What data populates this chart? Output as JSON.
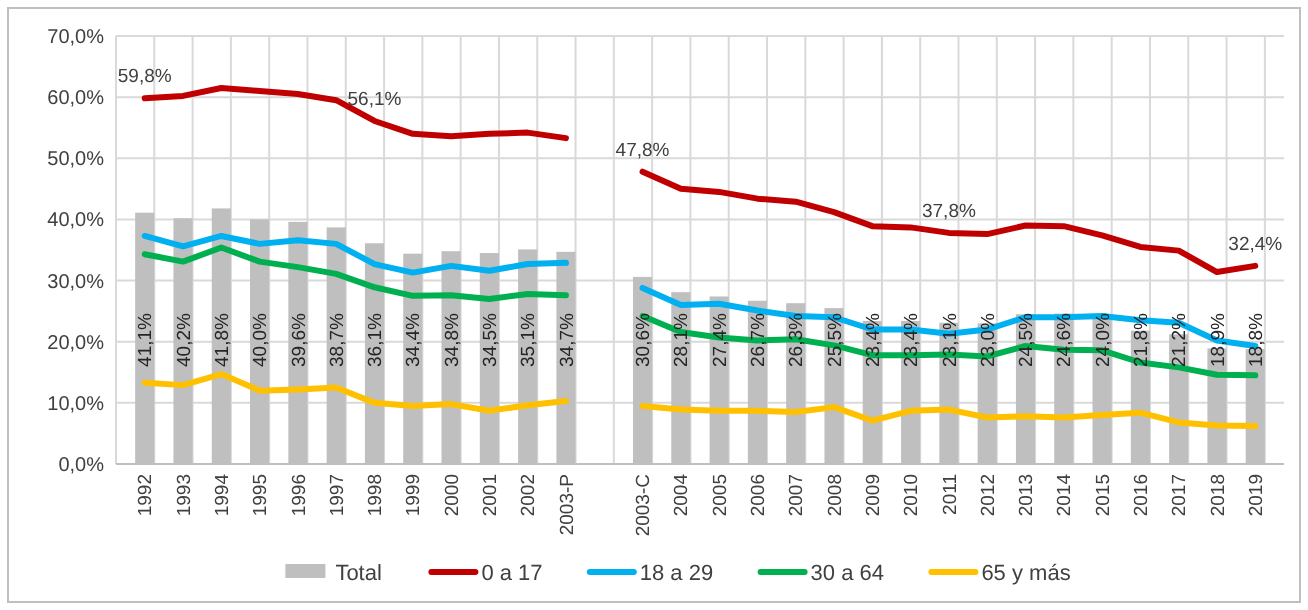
{
  "chart_data": {
    "type": "bar",
    "categories": [
      "1992",
      "1993",
      "1994",
      "1995",
      "1996",
      "1997",
      "1998",
      "1999",
      "2000",
      "2001",
      "2002",
      "2003-P",
      null,
      "2003-C",
      "2004",
      "2005",
      "2006",
      "2007",
      "2008",
      "2009",
      "2010",
      "2011",
      "2012",
      "2013",
      "2014",
      "2015",
      "2016",
      "2017",
      "2018",
      "2019"
    ],
    "series": [
      {
        "name": "Total",
        "color": "#bfbfbf",
        "values": [
          41.1,
          40.2,
          41.8,
          40.0,
          39.6,
          38.7,
          36.1,
          34.4,
          34.8,
          34.5,
          35.1,
          34.7,
          null,
          30.6,
          28.1,
          27.4,
          26.7,
          26.3,
          25.5,
          23.4,
          23.4,
          23.1,
          23.0,
          24.5,
          24.6,
          24.0,
          21.8,
          21.2,
          18.9,
          18.8
        ],
        "value_labels": [
          "41,1%",
          "40,2%",
          "41,8%",
          "40,0%",
          "39,6%",
          "38,7%",
          "36,1%",
          "34,4%",
          "34,8%",
          "34,5%",
          "35,1%",
          "34,7%",
          null,
          "30,6%",
          "28,1%",
          "27,4%",
          "26,7%",
          "26,3%",
          "25,5%",
          "23,4%",
          "23,4%",
          "23,1%",
          "23,0%",
          "24,5%",
          "24,6%",
          "24,0%",
          "21,8%",
          "21,2%",
          "18,9%",
          "18,8%"
        ]
      },
      {
        "name": "0 a 17",
        "type": "line",
        "color": "#c00000",
        "values": [
          59.8,
          60.2,
          61.5,
          61.0,
          60.5,
          59.5,
          56.1,
          54.0,
          53.6,
          54.0,
          54.2,
          53.3,
          null,
          47.8,
          45.0,
          44.5,
          43.4,
          42.9,
          41.2,
          38.9,
          38.7,
          37.8,
          37.6,
          39.0,
          38.9,
          37.4,
          35.5,
          34.9,
          31.4,
          32.4
        ],
        "value_labels": [
          "59,8%",
          null,
          null,
          null,
          null,
          null,
          "56,1%",
          null,
          null,
          null,
          null,
          null,
          null,
          "47,8%",
          null,
          null,
          null,
          null,
          null,
          null,
          null,
          "37,8%",
          null,
          null,
          null,
          null,
          null,
          null,
          null,
          "32,4%"
        ]
      },
      {
        "name": "18 a 29",
        "type": "line",
        "color": "#00b0f0",
        "values": [
          37.3,
          35.6,
          37.3,
          36.0,
          36.6,
          36.0,
          32.7,
          31.3,
          32.4,
          31.6,
          32.7,
          32.9,
          null,
          28.8,
          26.0,
          26.2,
          25.1,
          24.2,
          24.0,
          22.0,
          22.0,
          21.3,
          22.0,
          24.0,
          24.0,
          24.2,
          23.5,
          23.1,
          20.2,
          19.3
        ]
      },
      {
        "name": "30 a 64",
        "type": "line",
        "color": "#00b050",
        "values": [
          34.3,
          33.1,
          35.4,
          33.1,
          32.2,
          31.1,
          28.9,
          27.5,
          27.6,
          27.0,
          27.8,
          27.6,
          null,
          24.2,
          21.6,
          20.7,
          20.2,
          20.4,
          19.4,
          17.8,
          17.8,
          17.9,
          17.6,
          19.3,
          18.7,
          18.6,
          16.6,
          15.8,
          14.6,
          14.5
        ]
      },
      {
        "name": "65 y más",
        "type": "line",
        "color": "#ffc000",
        "values": [
          13.3,
          12.9,
          14.7,
          12.0,
          12.2,
          12.5,
          10.0,
          9.5,
          9.8,
          8.7,
          9.6,
          10.3,
          null,
          9.5,
          8.9,
          8.7,
          8.7,
          8.5,
          9.3,
          7.1,
          8.7,
          8.9,
          7.6,
          7.8,
          7.6,
          8.0,
          8.4,
          6.8,
          6.3,
          6.2
        ]
      }
    ],
    "ylim": [
      0,
      70
    ],
    "yticks": [
      {
        "value": 0,
        "label": "0,0%"
      },
      {
        "value": 10,
        "label": "10,0%"
      },
      {
        "value": 20,
        "label": "20,0%"
      },
      {
        "value": 30,
        "label": "30,0%"
      },
      {
        "value": 40,
        "label": "40,0%"
      },
      {
        "value": 50,
        "label": "50,0%"
      },
      {
        "value": 60,
        "label": "60,0%"
      },
      {
        "value": 70,
        "label": "70,0%"
      }
    ],
    "grid": true,
    "legend": "bottom"
  }
}
